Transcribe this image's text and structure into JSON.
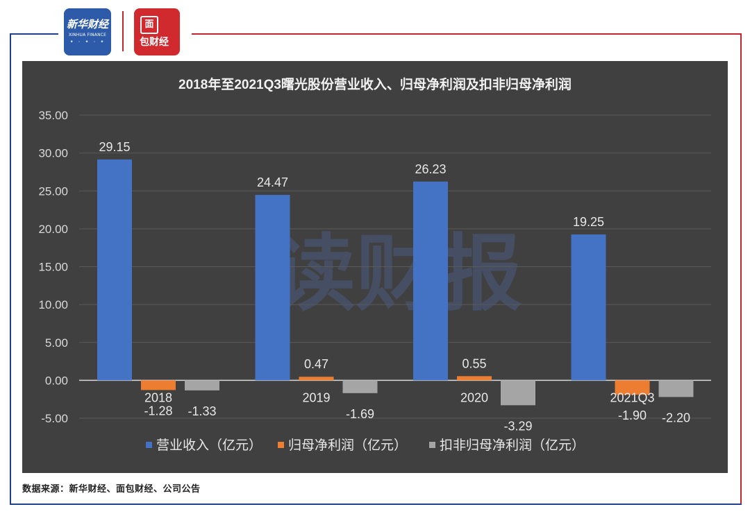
{
  "header": {
    "logo_xinhua_cn": "新华财经",
    "logo_xinhua_en": "XINHUA FINANCE",
    "logo_mianbao_char": "面",
    "logo_mianbao_text": "包财经"
  },
  "watermark": "读财报",
  "footer": {
    "source": "数据来源：新华财经、面包财经、公司公告"
  },
  "colors": {
    "revenue": "#4472c4",
    "net_profit": "#ed7d31",
    "deducted_net_profit": "#a5a5a5",
    "panel_bg": "#404040"
  },
  "chart_data": {
    "type": "bar",
    "title": "2018年至2021Q3曙光股份营业收入、归母净利润及扣非归母净利润",
    "categories": [
      "2018",
      "2019",
      "2020",
      "2021Q3"
    ],
    "series": [
      {
        "name": "营业收入（亿元）",
        "values": [
          29.15,
          24.47,
          26.23,
          19.25
        ],
        "labels": [
          "29.15",
          "24.47",
          "26.23",
          "19.25"
        ]
      },
      {
        "name": "归母净利润（亿元）",
        "values": [
          -1.28,
          0.47,
          0.55,
          -1.9
        ],
        "labels": [
          "-1.28",
          "0.47",
          "0.55",
          "-1.90"
        ]
      },
      {
        "name": "扣非归母净利润（亿元）",
        "values": [
          -1.33,
          -1.69,
          -3.29,
          -2.2
        ],
        "labels": [
          "-1.33",
          "-1.69",
          "-3.29",
          "-2.20"
        ]
      }
    ],
    "ylim": [
      -5,
      35
    ],
    "yticks": [
      "-5.00",
      "0.00",
      "5.00",
      "10.00",
      "15.00",
      "20.00",
      "25.00",
      "30.00",
      "35.00"
    ],
    "grid": true,
    "legend_position": "bottom"
  }
}
